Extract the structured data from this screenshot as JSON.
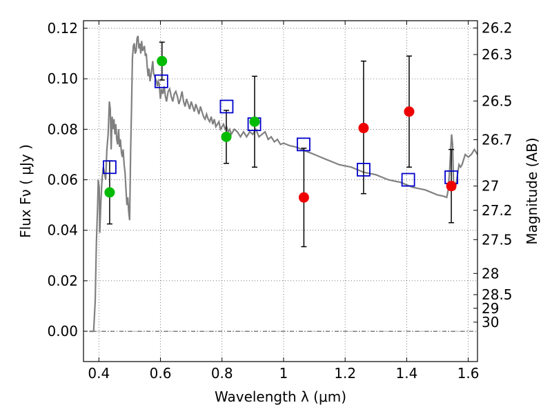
{
  "chart_data": {
    "type": "scatter",
    "xlabel": "Wavelength  λ (μm)",
    "ylabel": "Flux  Fν  ( μJy )",
    "y2label": "Magnitude (AB)",
    "xlim": [
      0.35,
      1.63
    ],
    "ylim": [
      -0.012,
      0.123
    ],
    "grid": true,
    "x_ticks": [
      {
        "value": 0.4,
        "label": "0.4"
      },
      {
        "value": 0.6,
        "label": "0.6"
      },
      {
        "value": 0.8,
        "label": "0.8"
      },
      {
        "value": 1.0,
        "label": "1"
      },
      {
        "value": 1.2,
        "label": "1.2"
      },
      {
        "value": 1.4,
        "label": "1.4"
      },
      {
        "value": 1.6,
        "label": "1.6"
      }
    ],
    "y_ticks": [
      {
        "value": 0.0,
        "label": "0.00"
      },
      {
        "value": 0.02,
        "label": "0.02"
      },
      {
        "value": 0.04,
        "label": "0.04"
      },
      {
        "value": 0.06,
        "label": "0.06"
      },
      {
        "value": 0.08,
        "label": "0.08"
      },
      {
        "value": 0.1,
        "label": "0.10"
      },
      {
        "value": 0.12,
        "label": "0.12"
      }
    ],
    "y2_ticks": [
      {
        "flux": 0.1201,
        "label": "26.2"
      },
      {
        "flux": 0.1096,
        "label": "26.3"
      },
      {
        "flux": 0.0912,
        "label": "26.5"
      },
      {
        "flux": 0.0759,
        "label": "26.7"
      },
      {
        "flux": 0.0575,
        "label": "27"
      },
      {
        "flux": 0.0479,
        "label": "27.2"
      },
      {
        "flux": 0.0363,
        "label": "27.5"
      },
      {
        "flux": 0.0229,
        "label": "28"
      },
      {
        "flux": 0.0145,
        "label": "28.5"
      },
      {
        "flux": 0.0091,
        "label": "29"
      },
      {
        "flux": 0.0036,
        "label": "30"
      }
    ],
    "colors": {
      "model": "#808080",
      "model_points": "#0000cc",
      "green": "#00bb00",
      "red": "#ee0000",
      "errorbar": "#000000"
    },
    "model_spectrum": {
      "x": [
        0.37,
        0.383,
        0.388,
        0.392,
        0.396,
        0.398,
        0.401,
        0.403,
        0.406,
        0.41,
        0.414,
        0.418,
        0.422,
        0.426,
        0.43,
        0.434,
        0.437,
        0.44,
        0.443,
        0.446,
        0.449,
        0.452,
        0.455,
        0.458,
        0.461,
        0.464,
        0.467,
        0.47,
        0.473,
        0.476,
        0.479,
        0.482,
        0.485,
        0.488,
        0.491,
        0.494,
        0.497,
        0.5,
        0.503,
        0.506,
        0.509,
        0.512,
        0.515,
        0.518,
        0.521,
        0.524,
        0.527,
        0.53,
        0.533,
        0.536,
        0.539,
        0.542,
        0.545,
        0.548,
        0.551,
        0.554,
        0.557,
        0.56,
        0.563,
        0.566,
        0.569,
        0.572,
        0.575,
        0.578,
        0.581,
        0.584,
        0.587,
        0.59,
        0.593,
        0.596,
        0.6,
        0.604,
        0.608,
        0.612,
        0.616,
        0.62,
        0.625,
        0.63,
        0.635,
        0.64,
        0.645,
        0.65,
        0.655,
        0.66,
        0.665,
        0.67,
        0.675,
        0.68,
        0.685,
        0.69,
        0.695,
        0.7,
        0.705,
        0.71,
        0.715,
        0.72,
        0.725,
        0.73,
        0.735,
        0.74,
        0.745,
        0.75,
        0.755,
        0.76,
        0.765,
        0.77,
        0.775,
        0.78,
        0.785,
        0.79,
        0.795,
        0.8,
        0.805,
        0.81,
        0.815,
        0.82,
        0.825,
        0.83,
        0.84,
        0.85,
        0.86,
        0.87,
        0.88,
        0.89,
        0.9,
        0.91,
        0.92,
        0.93,
        0.94,
        0.95,
        0.96,
        0.97,
        0.98,
        0.99,
        1.0,
        1.02,
        1.04,
        1.06,
        1.08,
        1.1,
        1.12,
        1.14,
        1.16,
        1.18,
        1.2,
        1.22,
        1.24,
        1.26,
        1.28,
        1.3,
        1.32,
        1.34,
        1.36,
        1.38,
        1.4,
        1.42,
        1.44,
        1.46,
        1.48,
        1.5,
        1.52,
        1.53,
        1.535,
        1.54,
        1.543,
        1.546,
        1.549,
        1.552,
        1.556,
        1.56,
        1.565,
        1.57,
        1.575,
        1.58,
        1.59,
        1.6,
        1.61,
        1.62,
        1.63
      ],
      "y": [
        0.0,
        0.0,
        0.012,
        0.035,
        0.05,
        0.06,
        0.057,
        0.039,
        0.05,
        0.06,
        0.065,
        0.063,
        0.06,
        0.072,
        0.078,
        0.091,
        0.088,
        0.072,
        0.085,
        0.08,
        0.084,
        0.078,
        0.082,
        0.076,
        0.074,
        0.08,
        0.073,
        0.076,
        0.071,
        0.069,
        0.072,
        0.066,
        0.063,
        0.056,
        0.05,
        0.053,
        0.047,
        0.044,
        0.071,
        0.088,
        0.108,
        0.113,
        0.114,
        0.11,
        0.111,
        0.116,
        0.117,
        0.112,
        0.114,
        0.11,
        0.115,
        0.111,
        0.112,
        0.113,
        0.109,
        0.11,
        0.105,
        0.101,
        0.104,
        0.099,
        0.101,
        0.104,
        0.107,
        0.102,
        0.101,
        0.1,
        0.099,
        0.097,
        0.099,
        0.098,
        0.092,
        0.096,
        0.094,
        0.097,
        0.093,
        0.091,
        0.095,
        0.096,
        0.093,
        0.091,
        0.094,
        0.095,
        0.093,
        0.09,
        0.092,
        0.095,
        0.091,
        0.089,
        0.092,
        0.09,
        0.088,
        0.091,
        0.089,
        0.087,
        0.09,
        0.088,
        0.086,
        0.089,
        0.087,
        0.085,
        0.084,
        0.086,
        0.084,
        0.083,
        0.085,
        0.082,
        0.084,
        0.081,
        0.082,
        0.083,
        0.08,
        0.081,
        0.082,
        0.08,
        0.081,
        0.079,
        0.08,
        0.078,
        0.08,
        0.079,
        0.077,
        0.079,
        0.077,
        0.079,
        0.078,
        0.08,
        0.077,
        0.078,
        0.079,
        0.076,
        0.077,
        0.075,
        0.076,
        0.074,
        0.0745,
        0.0735,
        0.073,
        0.072,
        0.071,
        0.07,
        0.069,
        0.068,
        0.067,
        0.066,
        0.0655,
        0.065,
        0.064,
        0.063,
        0.0625,
        0.062,
        0.061,
        0.06,
        0.0595,
        0.059,
        0.058,
        0.057,
        0.0565,
        0.056,
        0.055,
        0.054,
        0.0535,
        0.053,
        0.056,
        0.065,
        0.072,
        0.078,
        0.074,
        0.06,
        0.056,
        0.058,
        0.062,
        0.066,
        0.065,
        0.066,
        0.07,
        0.069,
        0.07,
        0.072,
        0.07
      ]
    },
    "model_points": {
      "x": [
        0.435,
        0.603,
        0.815,
        0.905,
        1.065,
        1.26,
        1.405,
        1.545
      ],
      "y": [
        0.065,
        0.099,
        0.089,
        0.082,
        0.074,
        0.064,
        0.06,
        0.061
      ]
    },
    "observations_green": {
      "x": [
        0.435,
        0.605,
        0.814,
        0.906
      ],
      "y": [
        0.055,
        0.107,
        0.077,
        0.083
      ],
      "err_low": [
        0.0125,
        0.0075,
        0.0105,
        0.018
      ],
      "err_high": [
        0.0125,
        0.0075,
        0.0105,
        0.018
      ]
    },
    "observations_red": {
      "x": [
        1.066,
        1.26,
        1.408,
        1.545
      ],
      "y": [
        0.053,
        0.0805,
        0.087,
        0.0575
      ],
      "err_low": [
        0.0195,
        0.026,
        0.022,
        0.0145
      ],
      "err_high": [
        0.0195,
        0.0265,
        0.022,
        0.0145
      ]
    }
  }
}
